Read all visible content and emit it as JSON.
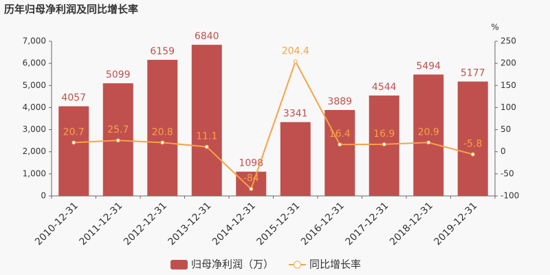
{
  "chart_data": {
    "type": "bar",
    "title": "历年归母净利润及同比增长率",
    "categories": [
      "2010-12-31",
      "2011-12-31",
      "2012-12-31",
      "2013-12-31",
      "2014-12-31",
      "2015-12-31",
      "2016-12-31",
      "2017-12-31",
      "2018-12-31",
      "2019-12-31"
    ],
    "series": [
      {
        "name": "归母净利润（万）",
        "color": "#c0504d",
        "type": "bar",
        "values": [
          4057,
          5099,
          6159,
          6840,
          1098,
          3341,
          3889,
          4544,
          5494,
          5177
        ]
      },
      {
        "name": "同比增长率",
        "color": "#f5a347",
        "type": "line",
        "axis": "y2",
        "values": [
          20.7,
          25.7,
          20.8,
          11.1,
          -84,
          204.4,
          16.4,
          16.9,
          20.9,
          -5.8
        ]
      }
    ],
    "ylim": [
      0,
      7000
    ],
    "yticks": [
      0,
      {
        "value": 1000,
        "label": "1,000"
      },
      {
        "value": 2000,
        "label": "2,000"
      },
      {
        "value": 3000,
        "label": "3,000"
      },
      {
        "value": 4000,
        "label": "4,000"
      },
      {
        "value": 5000,
        "label": "5,000"
      },
      {
        "value": 6000,
        "label": "6,000"
      },
      {
        "value": 7000,
        "label": "7,000"
      }
    ],
    "y2label": "%",
    "y2lim": [
      -100,
      250
    ],
    "y2ticks": [
      -100,
      -50,
      0,
      50,
      100,
      150,
      200,
      250
    ],
    "grid": false,
    "legend": "bottom"
  }
}
